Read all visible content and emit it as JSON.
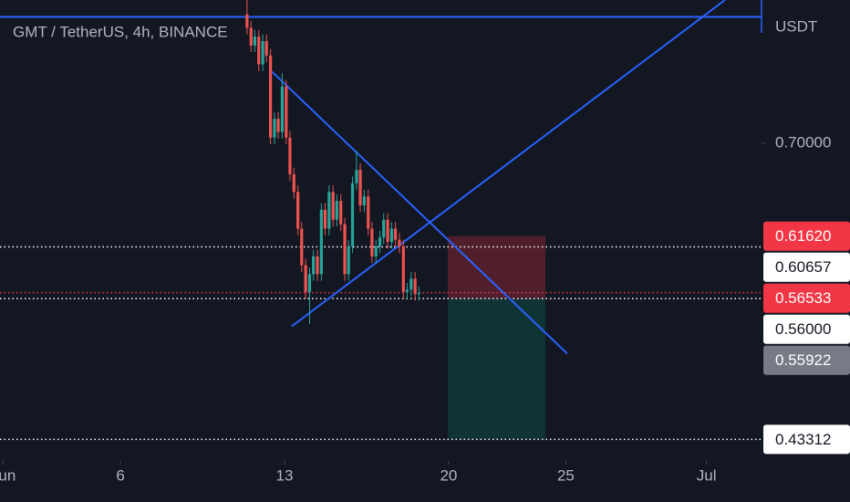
{
  "chart_data": {
    "type": "candlestick",
    "title": "GMT / TetherUS, 4h, BINANCE",
    "y_unit": "USDT",
    "up_color": "#26a69a",
    "down_color": "#ef5350",
    "x": [
      11.4,
      11.57,
      11.73,
      11.9,
      12.07,
      12.23,
      12.4,
      12.57,
      12.73,
      12.9,
      13.07,
      13.23,
      13.4,
      13.57,
      13.73,
      13.9,
      14.07,
      14.23,
      14.4,
      14.57,
      14.73,
      14.9,
      15.07,
      15.23,
      15.4,
      15.57,
      15.73,
      15.9,
      16.07,
      16.23,
      16.4,
      16.57,
      16.73,
      16.9,
      17.07,
      17.23,
      17.4,
      17.57,
      17.73,
      17.9,
      18.07,
      18.23,
      18.4,
      18.57,
      18.73
    ],
    "open": [
      0.816,
      0.804,
      0.788,
      0.796,
      0.771,
      0.792,
      0.779,
      0.705,
      0.722,
      0.71,
      0.751,
      0.705,
      0.672,
      0.656,
      0.623,
      0.59,
      0.566,
      0.582,
      0.598,
      0.582,
      0.64,
      0.623,
      0.656,
      0.631,
      0.648,
      0.627,
      0.582,
      0.607,
      0.664,
      0.676,
      0.644,
      0.652,
      0.623,
      0.598,
      0.607,
      0.615,
      0.631,
      0.611,
      0.623,
      0.613,
      0.607,
      0.566,
      0.568,
      0.578,
      0.564
    ],
    "high": [
      0.829,
      0.81,
      0.802,
      0.802,
      0.798,
      0.798,
      0.785,
      0.728,
      0.728,
      0.763,
      0.757,
      0.711,
      0.678,
      0.662,
      0.629,
      0.596,
      0.588,
      0.604,
      0.604,
      0.646,
      0.646,
      0.662,
      0.662,
      0.654,
      0.654,
      0.633,
      0.613,
      0.67,
      0.693,
      0.682,
      0.658,
      0.658,
      0.629,
      0.613,
      0.621,
      0.637,
      0.637,
      0.629,
      0.629,
      0.619,
      0.613,
      0.574,
      0.584,
      0.584,
      0.571
    ],
    "low": [
      0.798,
      0.782,
      0.782,
      0.765,
      0.765,
      0.773,
      0.699,
      0.699,
      0.704,
      0.704,
      0.699,
      0.666,
      0.65,
      0.617,
      0.584,
      0.56,
      0.537,
      0.576,
      0.576,
      0.576,
      0.617,
      0.617,
      0.625,
      0.625,
      0.621,
      0.576,
      0.576,
      0.601,
      0.658,
      0.638,
      0.638,
      0.617,
      0.592,
      0.592,
      0.601,
      0.609,
      0.605,
      0.605,
      0.607,
      0.601,
      0.56,
      0.56,
      0.562,
      0.558,
      0.558
    ],
    "close": [
      0.804,
      0.788,
      0.796,
      0.771,
      0.792,
      0.779,
      0.705,
      0.722,
      0.71,
      0.751,
      0.705,
      0.672,
      0.656,
      0.623,
      0.59,
      0.566,
      0.582,
      0.598,
      0.582,
      0.64,
      0.623,
      0.656,
      0.631,
      0.648,
      0.627,
      0.582,
      0.607,
      0.664,
      0.676,
      0.644,
      0.652,
      0.623,
      0.598,
      0.607,
      0.615,
      0.631,
      0.611,
      0.623,
      0.613,
      0.607,
      0.566,
      0.568,
      0.578,
      0.564,
      0.565
    ],
    "xlim": [
      0.86,
      33.35
    ],
    "xticks": [
      {
        "value": 1,
        "label": "Jun"
      },
      6,
      13,
      20,
      25,
      {
        "value": 31,
        "label": "Jul"
      }
    ],
    "ylim": [
      0.4137,
      0.829
    ],
    "yticks": [
      {
        "value": 0.7,
        "label": "0.70000"
      }
    ],
    "price_labels": [
      {
        "value": 0.6162,
        "label": "0.61620",
        "color": "#f23645",
        "line": false
      },
      {
        "value": 0.60657,
        "label": "0.60657",
        "color": "#ffffff",
        "line": true
      },
      {
        "value": 0.56533,
        "label": "0.56533",
        "color": "#f23645",
        "line": true
      },
      {
        "value": 0.56,
        "label": "0.56000",
        "color": "#ffffff",
        "line": true
      },
      {
        "value": 0.55922,
        "label": "0.55922",
        "color": "#787b86",
        "line": false
      },
      {
        "value": 0.43312,
        "label": "0.43312",
        "color": "#ffffff",
        "line": true
      }
    ],
    "position": {
      "x": [
        19.97,
        24.13
      ],
      "stop": 0.6162,
      "entry": 0.56,
      "target": 0.43312
    },
    "trendlines": [
      {
        "x": [
          12.46,
          25.06
        ],
        "y": [
          0.7645,
          0.5104
        ]
      },
      {
        "x": [
          13.31,
          31.79
        ],
        "y": [
          0.535,
          0.829
        ]
      }
    ],
    "hline": 0.8138,
    "line_color": "#2962ff"
  }
}
